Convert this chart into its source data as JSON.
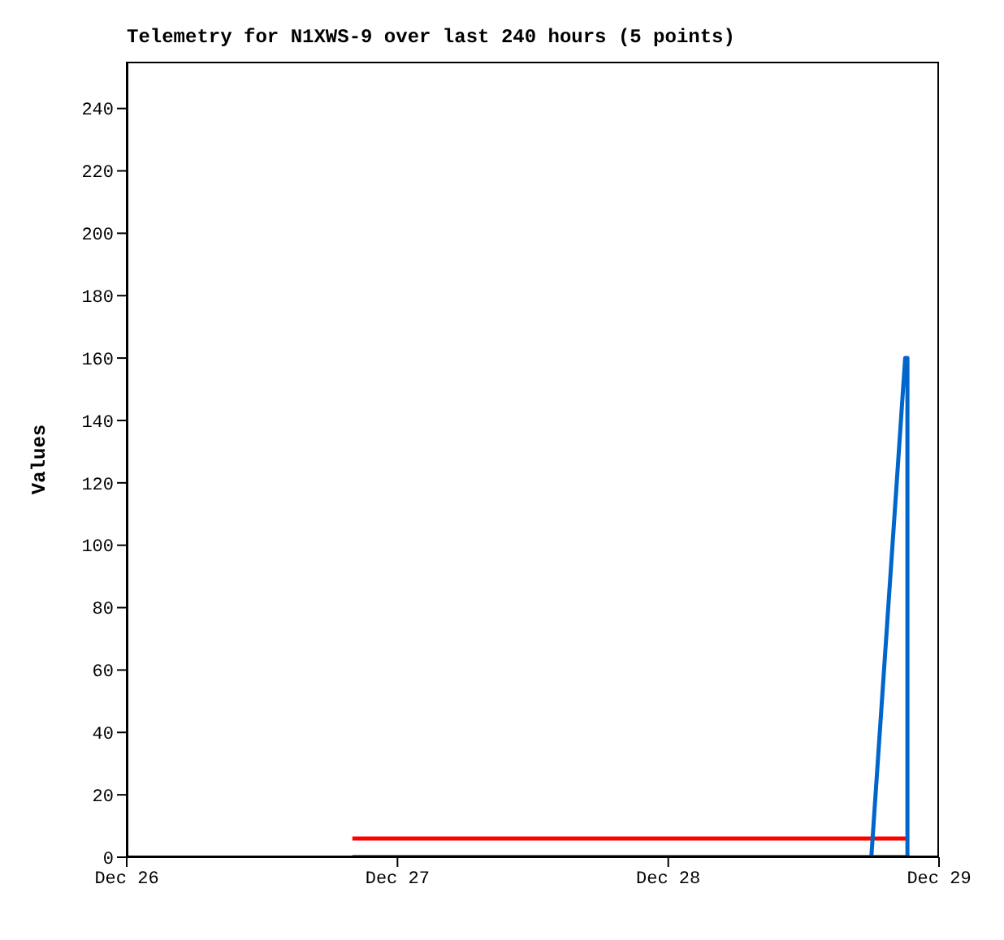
{
  "chart_data": {
    "type": "line",
    "title": "Telemetry for N1XWS-9 over last 240 hours (5 points)",
    "ylabel": "Values",
    "xlim": [
      "--12-26",
      "--12-29"
    ],
    "xticks": [
      {
        "value": "--12-26",
        "label": "Dec 26"
      },
      {
        "value": "--12-27",
        "label": "Dec 27"
      },
      {
        "value": "--12-28",
        "label": "Dec 28"
      },
      {
        "value": "--12-29",
        "label": "Dec 29"
      }
    ],
    "ylim": [
      0,
      255
    ],
    "yticks": [
      0,
      20,
      40,
      60,
      80,
      100,
      120,
      140,
      160,
      180,
      200,
      220,
      240
    ],
    "grid": false,
    "legend": false,
    "marker": "none",
    "line_style": "solid",
    "series": [
      {
        "color": "#ff0000",
        "x": [
          "--12-26T20:00",
          "--12-28T21:12"
        ],
        "values": [
          6,
          6
        ]
      },
      {
        "color": "#000000",
        "x": [
          "--12-26T20:00",
          "--12-28T21:12"
        ],
        "values": [
          0,
          0
        ]
      },
      {
        "color": "#0066cc",
        "x": [
          "--12-28T18:00",
          "--12-28T21:00",
          "--12-28T21:12",
          "--12-28T21:12",
          "--12-28T21:12"
        ],
        "values": [
          0,
          160,
          160,
          80,
          0
        ]
      }
    ]
  }
}
